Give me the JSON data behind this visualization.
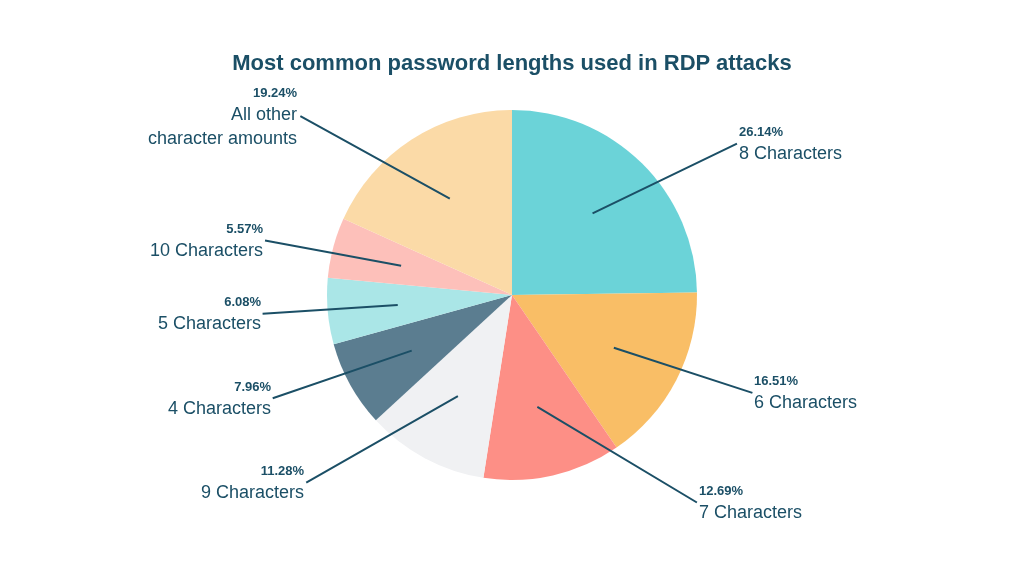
{
  "chart_data": {
    "type": "pie",
    "title": "Most common password lengths used in RDP attacks",
    "categories": [
      "8 Characters",
      "6 Characters",
      "7 Characters",
      "9 Characters",
      "4 Characters",
      "5 Characters",
      "10 Characters",
      "All other character amounts"
    ],
    "values": [
      26.14,
      16.51,
      12.69,
      11.28,
      7.96,
      6.08,
      5.57,
      19.24
    ],
    "value_labels": [
      "26.14%",
      "16.51%",
      "12.69%",
      "11.28%",
      "7.96%",
      "6.08%",
      "5.57%",
      "19.24%"
    ],
    "colors": [
      "#6bd3d8",
      "#f9be66",
      "#fd8f86",
      "#f0f1f3",
      "#5b7d90",
      "#aae6e7",
      "#fdc0ba",
      "#fbdaa7"
    ],
    "legend": false
  }
}
